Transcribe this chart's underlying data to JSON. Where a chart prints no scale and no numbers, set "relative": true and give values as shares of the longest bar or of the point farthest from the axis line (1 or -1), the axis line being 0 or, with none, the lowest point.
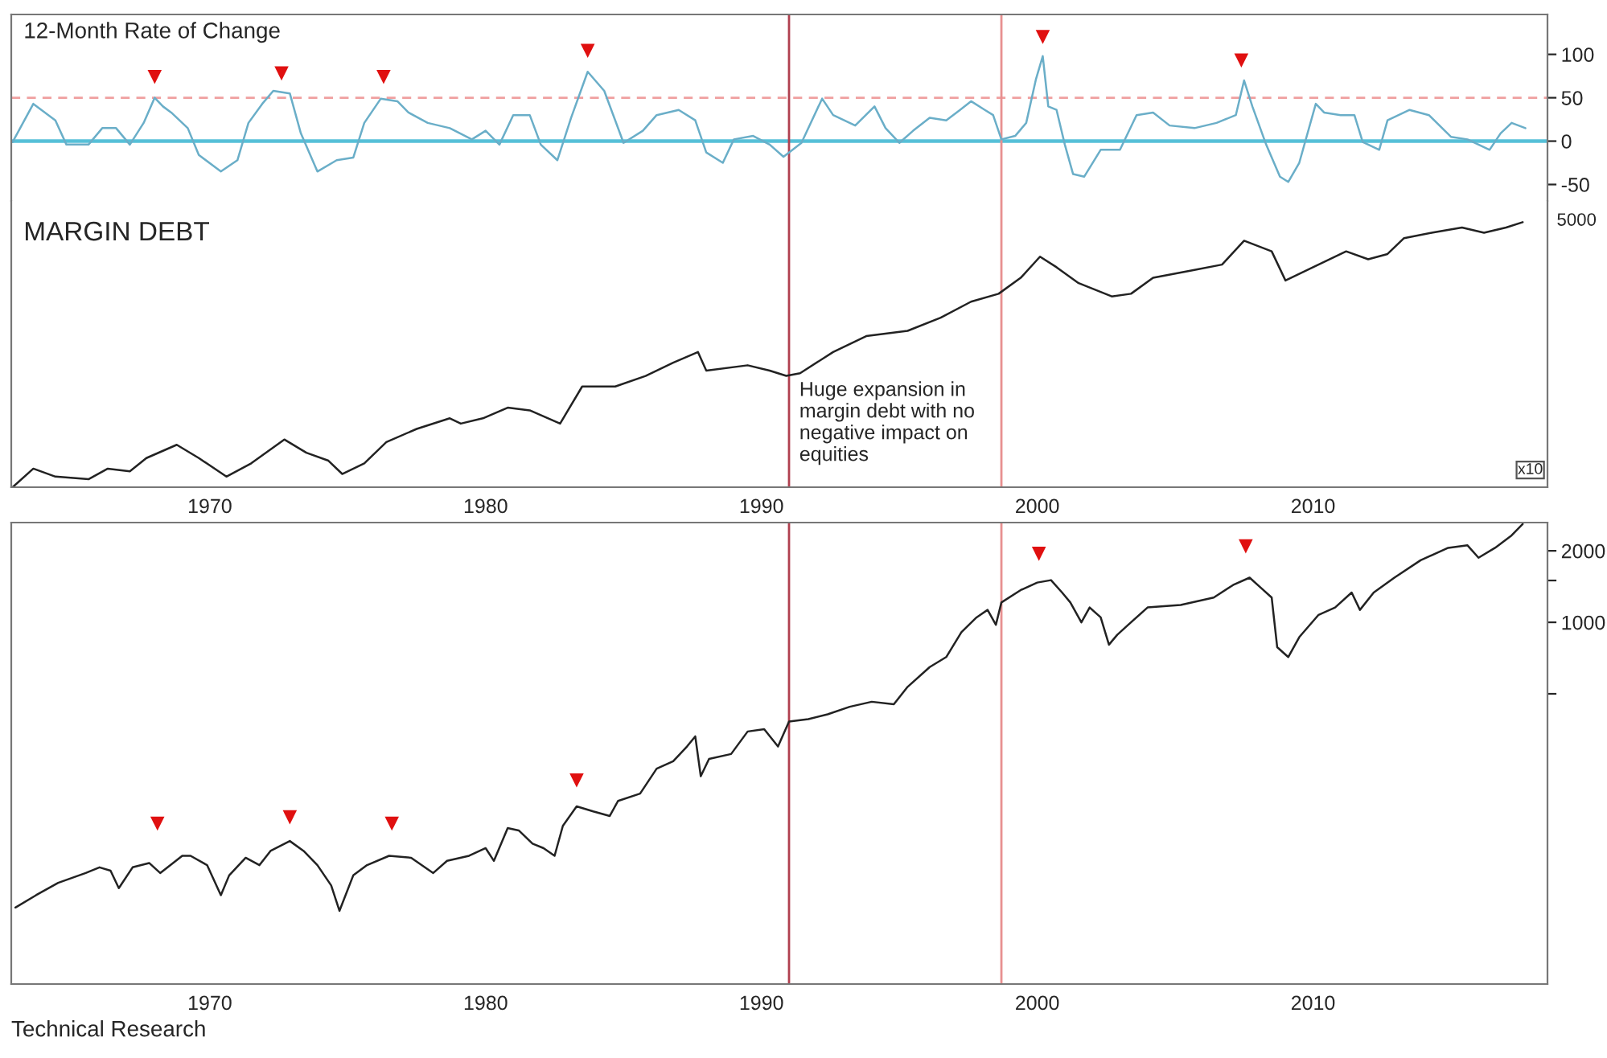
{
  "chart_data": [
    {
      "type": "line",
      "title": "12-Month Rate of Change",
      "xlim": [
        1962.8,
        2018.5
      ],
      "xticks": [
        1970,
        1980,
        1990,
        2000,
        2010
      ],
      "ylim": [
        -69,
        146
      ],
      "yticks": [
        100,
        50,
        0,
        -50
      ],
      "tick_labels": "y",
      "grid": false,
      "legend": false,
      "ref_lines": [
        {
          "axis": "y",
          "value": 0,
          "color": "#56c0d8",
          "line_style": "solid"
        },
        {
          "axis": "y",
          "value": 50,
          "color": "#f0a0a0",
          "line_style": "dashed"
        },
        {
          "axis": "x",
          "value": 1991.0,
          "color": "#b0404f",
          "line_style": "solid"
        },
        {
          "axis": "x",
          "value": 1998.7,
          "color": "#e89090",
          "line_style": "solid"
        }
      ],
      "series": [
        {
          "color": "#6aaec8",
          "marker": "none",
          "x": [
            1962.85,
            1963.6,
            1964.4,
            1964.8,
            1965.6,
            1966.1,
            1966.6,
            1967.1,
            1967.6,
            1968.0,
            1968.3,
            1968.6,
            1969.2,
            1969.6,
            1970.4,
            1971.0,
            1971.4,
            1971.9,
            1972.3,
            1972.9,
            1973.3,
            1973.9,
            1974.6,
            1975.2,
            1975.6,
            1976.2,
            1976.8,
            1977.2,
            1977.9,
            1978.7,
            1979.5,
            1980.0,
            1980.5,
            1981.0,
            1981.6,
            1982.0,
            1982.6,
            1983.1,
            1983.7,
            1984.3,
            1985.0,
            1985.7,
            1986.2,
            1987.0,
            1987.6,
            1988.0,
            1988.6,
            1989.0,
            1989.7,
            1990.3,
            1990.8,
            1991.45,
            1992.2,
            1992.6,
            1993.4,
            1994.1,
            1994.5,
            1995.0,
            1995.5,
            1996.1,
            1996.7,
            1997.2,
            1997.6,
            1998.1,
            1998.4,
            1998.7,
            1999.2,
            1999.6,
            1999.95,
            2000.2,
            2000.4,
            2000.7,
            2001.0,
            2001.3,
            2001.7,
            2002.3,
            2003.0,
            2003.6,
            2004.2,
            2004.8,
            2005.7,
            2006.5,
            2007.2,
            2007.5,
            2007.8,
            2008.3,
            2008.8,
            2009.1,
            2009.5,
            2010.1,
            2010.4,
            2011.0,
            2011.5,
            2011.8,
            2012.4,
            2012.7,
            2013.5,
            2014.2,
            2015.0,
            2015.6,
            2016.4,
            2016.8,
            2017.2,
            2017.7
          ],
          "values": [
            -1,
            43,
            24,
            -4,
            -4,
            15,
            15,
            -4,
            21,
            50,
            40,
            33,
            15,
            -16,
            -35,
            -22,
            21,
            43,
            58,
            55,
            9,
            -35,
            -22,
            -19,
            21,
            49,
            46,
            33,
            21,
            15,
            2,
            12,
            -4,
            30,
            30,
            -4,
            -22,
            27,
            80,
            58,
            -2,
            12,
            30,
            36,
            24,
            -13,
            -25,
            2,
            6,
            -4,
            -18,
            -2,
            49,
            30,
            18,
            40,
            15,
            -2,
            12,
            27,
            24,
            36,
            46,
            36,
            30,
            2,
            6,
            21,
            71,
            98,
            40,
            36,
            -4,
            -38,
            -41,
            -10,
            -10,
            30,
            33,
            18,
            15,
            21,
            30,
            70,
            40,
            -4,
            -41,
            -47,
            -25,
            43,
            33,
            30,
            30,
            -1,
            -10,
            24,
            36,
            30,
            5,
            2,
            -10,
            9,
            21,
            15
          ]
        },
        {
          "type": "scatter",
          "color": "#e01010",
          "marker": "triangle",
          "x": [
            1968.0,
            1972.6,
            1976.3,
            1983.7,
            2000.2,
            2007.4
          ],
          "values": [
            74,
            78,
            74,
            104,
            120,
            93
          ]
        }
      ]
    },
    {
      "type": "line",
      "title": "MARGIN DEBT",
      "relative": true,
      "xlim": [
        1962.8,
        2018.5
      ],
      "xticks": [
        1970,
        1980,
        1990,
        2000,
        2010
      ],
      "tick_labels": "x",
      "grid": false,
      "legend": false,
      "annotations": [
        "Huge expansion in\nmargin debt with no\nnegative impact on\nequities",
        "5000",
        "x10"
      ],
      "ref_lines": [
        {
          "axis": "x",
          "value": 1991.0,
          "color": "#b0404f",
          "line_style": "solid"
        },
        {
          "axis": "x",
          "value": 1998.7,
          "color": "#e89090",
          "line_style": "solid"
        }
      ],
      "series": [
        {
          "color": "#222222",
          "marker": "none",
          "x": [
            1962.85,
            1963.6,
            1964.4,
            1965.6,
            1966.3,
            1967.1,
            1967.7,
            1968.8,
            1969.6,
            1970.6,
            1971.5,
            1972.7,
            1973.5,
            1974.3,
            1974.8,
            1975.6,
            1976.4,
            1977.5,
            1978.7,
            1979.1,
            1979.9,
            1980.8,
            1981.6,
            1982.7,
            1983.5,
            1984.7,
            1985.8,
            1986.8,
            1987.7,
            1988.0,
            1989.5,
            1990.3,
            1990.9,
            1991.4,
            1992.6,
            1993.8,
            1995.3,
            1996.5,
            1997.6,
            1998.6,
            1999.4,
            2000.1,
            2000.7,
            2001.5,
            2002.7,
            2003.4,
            2004.2,
            2005.7,
            2006.7,
            2007.5,
            2008.5,
            2009.0,
            2010.0,
            2011.2,
            2012.0,
            2012.7,
            2013.3,
            2014.3,
            2015.4,
            2016.2,
            2017.0,
            2017.6
          ],
          "values": [
            0,
            0.07,
            0.04,
            0.03,
            0.07,
            0.06,
            0.11,
            0.16,
            0.11,
            0.04,
            0.09,
            0.18,
            0.13,
            0.1,
            0.05,
            0.09,
            0.17,
            0.22,
            0.26,
            0.24,
            0.26,
            0.3,
            0.29,
            0.24,
            0.38,
            0.38,
            0.42,
            0.47,
            0.51,
            0.44,
            0.46,
            0.44,
            0.42,
            0.43,
            0.51,
            0.57,
            0.59,
            0.64,
            0.7,
            0.73,
            0.79,
            0.87,
            0.83,
            0.77,
            0.72,
            0.73,
            0.79,
            0.82,
            0.84,
            0.93,
            0.89,
            0.78,
            0.83,
            0.89,
            0.86,
            0.88,
            0.94,
            0.96,
            0.98,
            0.96,
            0.98,
            1
          ]
        }
      ]
    },
    {
      "type": "line",
      "log": "y",
      "xlim": [
        1962.8,
        2018.5
      ],
      "xticks": [
        1970,
        1980,
        1990,
        2000,
        2010
      ],
      "ylim": [
        30,
        2630
      ],
      "yticks": [
        2000,
        {
          "value": 1500,
          "label": null
        },
        1000,
        {
          "value": 500,
          "label": null
        }
      ],
      "grid": false,
      "legend": false,
      "annotations": [
        "Technical Research"
      ],
      "ref_lines": [
        {
          "axis": "x",
          "value": 1991.0,
          "color": "#b0404f",
          "line_style": "solid"
        },
        {
          "axis": "x",
          "value": 1998.7,
          "color": "#e89090",
          "line_style": "solid"
        }
      ],
      "series": [
        {
          "color": "#222222",
          "marker": "none",
          "x": [
            1962.95,
            1963.7,
            1964.5,
            1965.5,
            1966.0,
            1966.4,
            1966.7,
            1967.2,
            1967.8,
            1968.2,
            1969.0,
            1969.3,
            1969.9,
            1970.4,
            1970.7,
            1971.3,
            1971.8,
            1972.2,
            1972.9,
            1973.4,
            1973.9,
            1974.4,
            1974.7,
            1975.2,
            1975.7,
            1976.5,
            1977.3,
            1978.1,
            1978.6,
            1979.4,
            1980.0,
            1980.3,
            1980.8,
            1981.2,
            1981.7,
            1982.1,
            1982.5,
            1982.8,
            1983.3,
            1983.9,
            1984.5,
            1984.8,
            1985.6,
            1986.2,
            1986.8,
            1987.3,
            1987.6,
            1987.8,
            1988.1,
            1988.9,
            1989.5,
            1990.1,
            1990.6,
            1991.0,
            1991.7,
            1992.4,
            1993.2,
            1994.0,
            1994.8,
            1995.3,
            1996.1,
            1996.7,
            1997.25,
            1997.8,
            1998.2,
            1998.5,
            1998.7,
            1999.4,
            2000.0,
            2000.5,
            2000.9,
            2001.2,
            2001.6,
            2001.9,
            2002.3,
            2002.6,
            2002.9,
            2003.3,
            2004.0,
            2005.2,
            2006.4,
            2007.1,
            2007.7,
            2008.1,
            2008.5,
            2008.7,
            2009.1,
            2009.5,
            2010.2,
            2010.8,
            2011.4,
            2011.7,
            2012.2,
            2012.95,
            2013.9,
            2014.9,
            2015.6,
            2016.0,
            2016.6,
            2017.2,
            2017.6
          ],
          "values": [
            63,
            71,
            80,
            88,
            93,
            90,
            76,
            93,
            97,
            88,
            104,
            104,
            95,
            71,
            86,
            102,
            95,
            109,
            120,
            109,
            95,
            78,
            61,
            86,
            95,
            104,
            102,
            88,
            99,
            104,
            112,
            99,
            136,
            133,
            117,
            112,
            104,
            139,
            168,
            160,
            153,
            177,
            190,
            242,
            260,
            300,
            331,
            225,
            266,
            279,
            347,
            355,
            300,
            382,
            391,
            410,
            441,
            463,
            452,
            535,
            648,
            714,
            908,
            1049,
            1128,
            976,
            1212,
            1367,
            1470,
            1505,
            1335,
            1212,
            1000,
            1155,
            1049,
            805,
            886,
            976,
            1155,
            1183,
            1272,
            1435,
            1542,
            1401,
            1272,
            786,
            714,
            866,
            1075,
            1155,
            1335,
            1128,
            1335,
            1542,
            1825,
            2059,
            2109,
            1870,
            2059,
            2322,
            2594
          ]
        },
        {
          "type": "scatter",
          "color": "#e01010",
          "marker": "triangle",
          "x": [
            1968.1,
            1972.9,
            1976.6,
            1983.3,
            2000.06,
            2007.56
          ],
          "values": [
            142,
            151,
            142,
            216,
            1943,
            2088
          ]
        }
      ]
    }
  ]
}
